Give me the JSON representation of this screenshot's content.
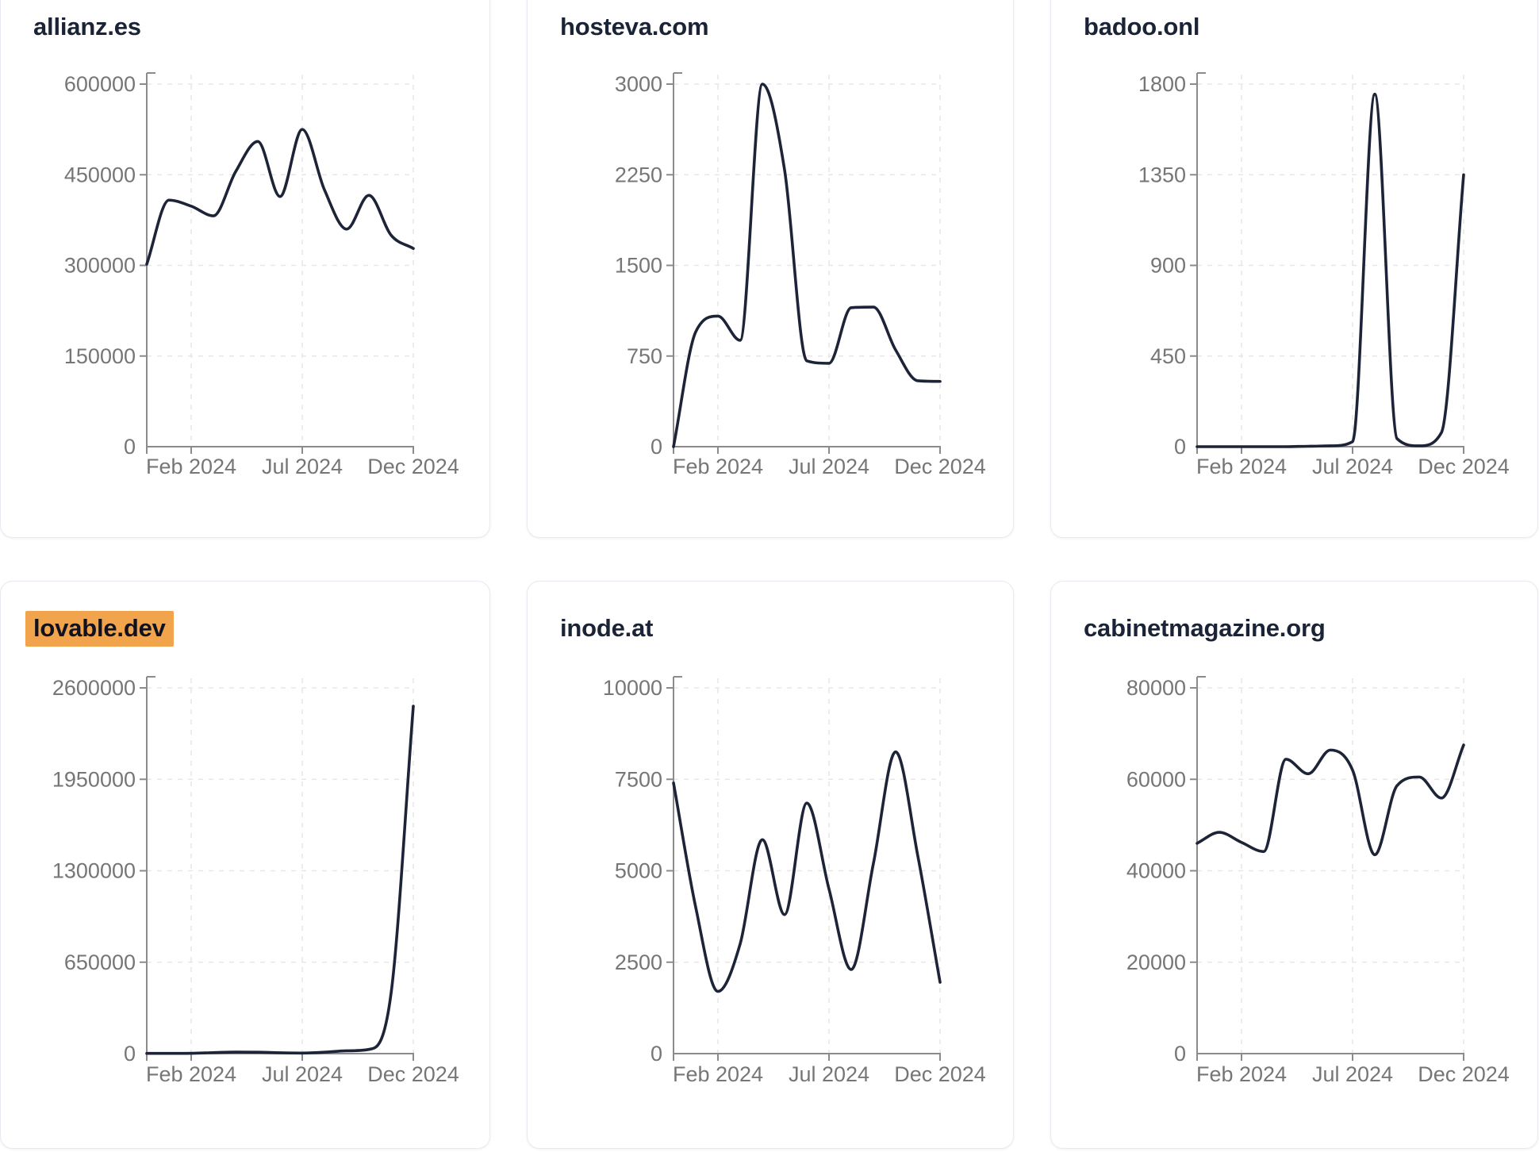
{
  "colors": {
    "page_bg": "#ffffff",
    "card_bg": "#ffffff",
    "card_border": "#e8eaf1",
    "line": "#1d2438",
    "title": "#1b2437",
    "tick_label": "#767676",
    "axis": "#8b8b8b",
    "grid": "#e7e7e7",
    "highlight_bg": "#f2a44d",
    "highlight_text": "#10131f"
  },
  "x_axis": {
    "tick_labels": [
      "Feb 2024",
      "Jul 2024",
      "Dec 2024"
    ],
    "tick_month_indices": [
      2,
      7,
      12
    ]
  },
  "chart_data": [
    {
      "type": "line",
      "title": "allianz.es",
      "title_highlighted": false,
      "x": [
        "Dec 2023",
        "Jan 2024",
        "Feb 2024",
        "Mar 2024",
        "Apr 2024",
        "May 2024",
        "Jun 2024",
        "Jul 2024",
        "Aug 2024",
        "Sep 2024",
        "Oct 2024",
        "Nov 2024",
        "Dec 2024"
      ],
      "values": [
        302000,
        408000,
        398000,
        382000,
        455000,
        505000,
        414000,
        525000,
        425000,
        360000,
        416000,
        350000,
        328000
      ],
      "ylim": [
        0,
        600000
      ],
      "y_ticks": [
        0,
        150000,
        300000,
        450000,
        600000
      ],
      "x_tick_labels": [
        "Feb 2024",
        "Jul 2024",
        "Dec 2024"
      ],
      "xlabel": "",
      "ylabel": "",
      "grid": true,
      "legend": false
    },
    {
      "type": "line",
      "title": "hosteva.com",
      "title_highlighted": false,
      "x": [
        "Dec 2023",
        "Jan 2024",
        "Feb 2024",
        "Mar 2024",
        "Apr 2024",
        "May 2024",
        "Jun 2024",
        "Jul 2024",
        "Aug 2024",
        "Sep 2024",
        "Oct 2024",
        "Nov 2024",
        "Dec 2024"
      ],
      "values": [
        0,
        950,
        1080,
        880,
        3000,
        2290,
        710,
        690,
        1150,
        1155,
        800,
        545,
        540
      ],
      "ylim": [
        0,
        3000
      ],
      "y_ticks": [
        0,
        750,
        1500,
        2250,
        3000
      ],
      "x_tick_labels": [
        "Feb 2024",
        "Jul 2024",
        "Dec 2024"
      ],
      "xlabel": "",
      "ylabel": "",
      "grid": true,
      "legend": false
    },
    {
      "type": "line",
      "title": "badoo.onl",
      "title_highlighted": false,
      "x": [
        "Dec 2023",
        "Jan 2024",
        "Feb 2024",
        "Mar 2024",
        "Apr 2024",
        "May 2024",
        "Jun 2024",
        "Jul 2024",
        "Aug 2024",
        "Sep 2024",
        "Oct 2024",
        "Nov 2024",
        "Dec 2024"
      ],
      "values": [
        0,
        0,
        0,
        0,
        0,
        2,
        4,
        25,
        1750,
        40,
        4,
        70,
        1350
      ],
      "ylim": [
        0,
        1800
      ],
      "y_ticks": [
        0,
        450,
        900,
        1350,
        1800
      ],
      "x_tick_labels": [
        "Feb 2024",
        "Jul 2024",
        "Dec 2024"
      ],
      "xlabel": "",
      "ylabel": "",
      "grid": true,
      "legend": false
    },
    {
      "type": "line",
      "title": "lovable.dev",
      "title_highlighted": true,
      "x": [
        "Dec 2023",
        "Jan 2024",
        "Feb 2024",
        "Mar 2024",
        "Apr 2024",
        "May 2024",
        "Jun 2024",
        "Jul 2024",
        "Aug 2024",
        "Sep 2024",
        "Oct 2024",
        "Nov 2024",
        "Dec 2024"
      ],
      "values": [
        1500,
        1500,
        2500,
        7000,
        11000,
        10000,
        6000,
        4000,
        10000,
        20000,
        30000,
        430000,
        2470000
      ],
      "ylim": [
        0,
        2600000
      ],
      "y_ticks": [
        0,
        650000,
        1300000,
        1950000,
        2600000
      ],
      "x_tick_labels": [
        "Feb 2024",
        "Jul 2024",
        "Dec 2024"
      ],
      "xlabel": "",
      "ylabel": "",
      "grid": true,
      "legend": false
    },
    {
      "type": "line",
      "title": "inode.at",
      "title_highlighted": false,
      "x": [
        "Dec 2023",
        "Jan 2024",
        "Feb 2024",
        "Mar 2024",
        "Apr 2024",
        "May 2024",
        "Jun 2024",
        "Jul 2024",
        "Aug 2024",
        "Sep 2024",
        "Oct 2024",
        "Nov 2024",
        "Dec 2024"
      ],
      "values": [
        7400,
        4000,
        1700,
        3000,
        5850,
        3800,
        6850,
        4500,
        2300,
        5200,
        8250,
        5400,
        1950
      ],
      "ylim": [
        0,
        10000
      ],
      "y_ticks": [
        0,
        2500,
        5000,
        7500,
        10000
      ],
      "x_tick_labels": [
        "Feb 2024",
        "Jul 2024",
        "Dec 2024"
      ],
      "xlabel": "",
      "ylabel": "",
      "grid": true,
      "legend": false
    },
    {
      "type": "line",
      "title": "cabinetmagazine.org",
      "title_highlighted": false,
      "x": [
        "Dec 2023",
        "Jan 2024",
        "Feb 2024",
        "Mar 2024",
        "Apr 2024",
        "May 2024",
        "Jun 2024",
        "Jul 2024",
        "Aug 2024",
        "Sep 2024",
        "Oct 2024",
        "Nov 2024",
        "Dec 2024"
      ],
      "values": [
        46000,
        48400,
        46200,
        44200,
        64400,
        61200,
        66400,
        62000,
        43500,
        58600,
        60500,
        55900,
        67500
      ],
      "ylim": [
        0,
        80000
      ],
      "y_ticks": [
        0,
        20000,
        40000,
        60000,
        80000
      ],
      "x_tick_labels": [
        "Feb 2024",
        "Jul 2024",
        "Dec 2024"
      ],
      "xlabel": "",
      "ylabel": "",
      "grid": true,
      "legend": false
    }
  ]
}
